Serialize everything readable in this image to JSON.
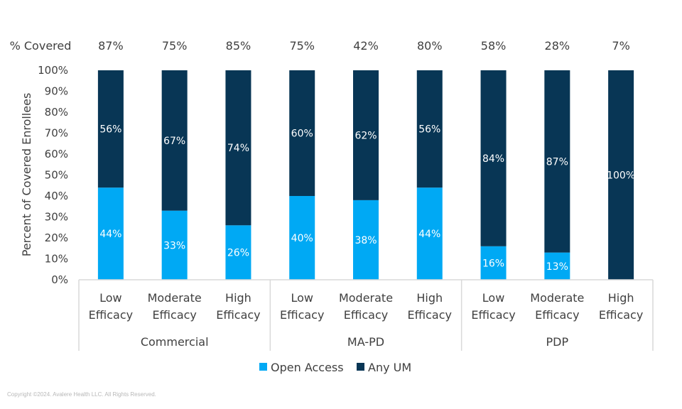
{
  "chart_data": {
    "type": "bar",
    "stacked": true,
    "title": "",
    "xlabel": "",
    "ylabel": "Percent of Covered Enrollees",
    "ylim": [
      0,
      100
    ],
    "yticks": [
      "0%",
      "10%",
      "20%",
      "30%",
      "40%",
      "50%",
      "60%",
      "70%",
      "80%",
      "90%",
      "100%"
    ],
    "grid": false,
    "legend_position": "bottom",
    "covered_label": "% Covered",
    "groups": [
      {
        "name": "Commercial",
        "categories": [
          [
            "Low",
            "Efficacy"
          ],
          [
            "Moderate",
            "Efficacy"
          ],
          [
            "High",
            "Efficacy"
          ]
        ]
      },
      {
        "name": "MA-PD",
        "categories": [
          [
            "Low",
            "Efficacy"
          ],
          [
            "Moderate",
            "Efficacy"
          ],
          [
            "High",
            "Efficacy"
          ]
        ]
      },
      {
        "name": "PDP",
        "categories": [
          [
            "Low",
            "Efficacy"
          ],
          [
            "Moderate",
            "Efficacy"
          ],
          [
            "High",
            "Efficacy"
          ]
        ]
      }
    ],
    "categories": [
      "Commercial - Low Efficacy",
      "Commercial - Moderate Efficacy",
      "Commercial - High Efficacy",
      "MA-PD - Low Efficacy",
      "MA-PD - Moderate Efficacy",
      "MA-PD - High Efficacy",
      "PDP - Low Efficacy",
      "PDP - Moderate Efficacy",
      "PDP - High Efficacy"
    ],
    "percent_covered": [
      "87%",
      "75%",
      "85%",
      "75%",
      "42%",
      "80%",
      "58%",
      "28%",
      "7%"
    ],
    "series": [
      {
        "name": "Open Access",
        "color": "#00a9f4",
        "values": [
          44,
          33,
          26,
          40,
          38,
          44,
          16,
          13,
          0
        ]
      },
      {
        "name": "Any UM",
        "color": "#083655",
        "values": [
          56,
          67,
          74,
          60,
          62,
          56,
          84,
          87,
          100
        ]
      }
    ]
  },
  "footer": {
    "copyright": "Copyright ©2024. Avalere Health LLC. All Rights Reserved."
  }
}
